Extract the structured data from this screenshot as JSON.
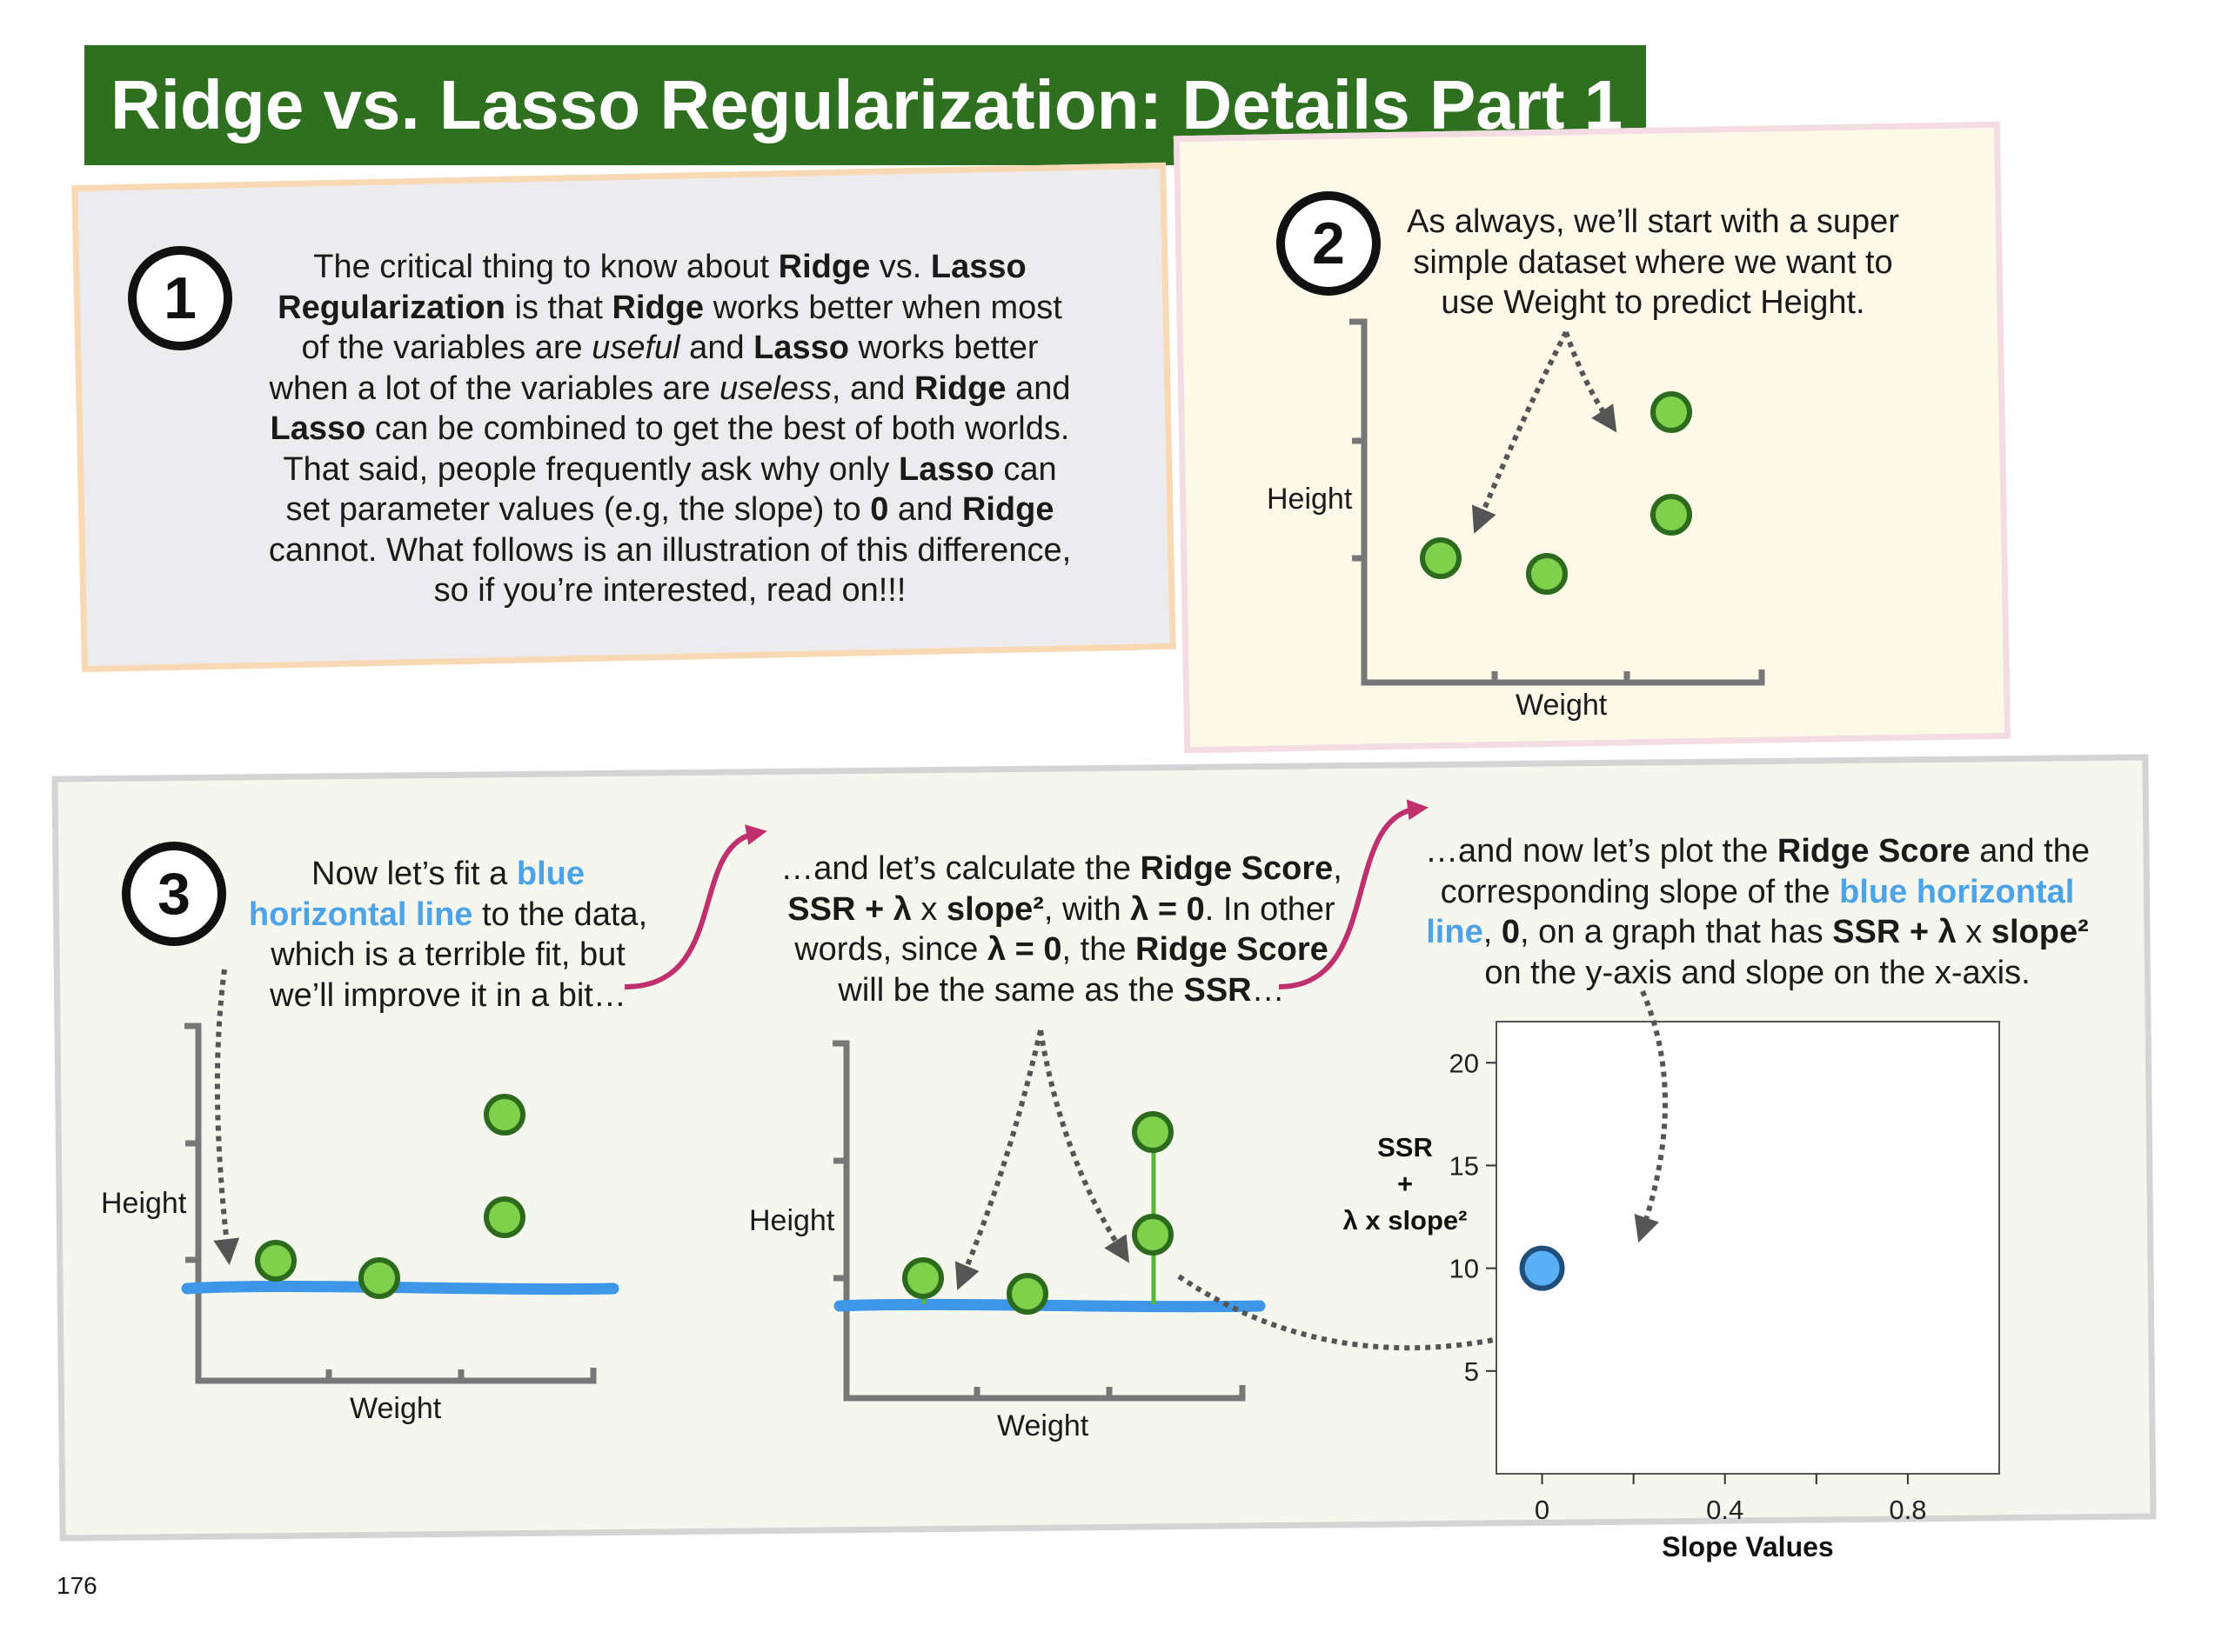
{
  "title": "Ridge vs. Lasso Regularization: Details Part 1",
  "page_number": "176",
  "step1": {
    "number": "1",
    "lines": [
      [
        "The critical thing to know about ",
        {
          "b": "Ridge"
        },
        " vs. ",
        {
          "b": "Lasso"
        }
      ],
      [
        {
          "b": "Regularization"
        },
        " is that ",
        {
          "b": "Ridge"
        },
        " works better when most"
      ],
      [
        "of the variables are ",
        {
          "i": "useful"
        },
        " and ",
        {
          "b": "Lasso"
        },
        " works better"
      ],
      [
        "when a lot of the variables are ",
        {
          "i": "useless"
        },
        ", and ",
        {
          "b": "Ridge"
        },
        " and"
      ],
      [
        {
          "b": "Lasso"
        },
        " can be combined to get the best of both worlds."
      ],
      [
        "That said, people frequently ask why only ",
        {
          "b": "Lasso"
        },
        " can"
      ],
      [
        "set parameter values (e.g, the slope) to ",
        {
          "b": "0"
        },
        " and ",
        {
          "b": "Ridge"
        }
      ],
      [
        "cannot. What follows is an illustration of this difference,"
      ],
      [
        "so if you’re interested, read on!!!"
      ]
    ]
  },
  "step2": {
    "number": "2",
    "lines": [
      [
        "As always, we’ll start with a super"
      ],
      [
        "simple dataset where we want to"
      ],
      [
        "use Weight to predict Height."
      ]
    ],
    "xlabel": "Weight",
    "ylabel": "Height"
  },
  "step3": {
    "number": "3",
    "text_a": [
      [
        "Now let’s fit a ",
        {
          "blue": "blue"
        }
      ],
      [
        {
          "blue": "horizontal line"
        },
        " to the data,"
      ],
      [
        "which is a terrible fit, but"
      ],
      [
        "we’ll improve it in a bit…"
      ]
    ],
    "text_b": [
      [
        "…and let’s calculate the ",
        {
          "b": "Ridge Score"
        },
        ","
      ],
      [
        {
          "b": "SSR + λ"
        },
        " x ",
        {
          "b": "slope²"
        },
        ", with ",
        {
          "b": "λ = 0"
        },
        ". In other"
      ],
      [
        "words, since ",
        {
          "b": "λ = 0"
        },
        ", the ",
        {
          "b": "Ridge Score"
        }
      ],
      [
        "will be the same as the ",
        {
          "b": "SSR"
        },
        "…"
      ]
    ],
    "text_c": [
      [
        "…and now let’s plot the ",
        {
          "b": "Ridge Score"
        },
        " and the"
      ],
      [
        "corresponding slope of the ",
        {
          "blue": "blue horizontal"
        }
      ],
      [
        {
          "blue": "line"
        },
        ", ",
        {
          "b": "0"
        },
        ", on a graph that has ",
        {
          "b": "SSR + λ"
        },
        " x ",
        {
          "b": "slope²"
        }
      ],
      [
        "on the y-axis and slope on the x-axis."
      ]
    ],
    "plot_a": {
      "xlabel": "Weight",
      "ylabel": "Height"
    },
    "plot_b": {
      "xlabel": "Weight",
      "ylabel": "Height"
    }
  },
  "chart_data": {
    "type": "scatter",
    "xlabel": "Slope Values",
    "ylabel_lines": [
      "SSR",
      "+",
      "λ x slope²"
    ],
    "xlim": [
      -0.1,
      1.0
    ],
    "ylim": [
      0,
      22
    ],
    "xticks": [
      0,
      0.4,
      0.8
    ],
    "yticks": [
      5,
      10,
      15,
      20
    ],
    "points": [
      {
        "x": 0,
        "y": 10
      }
    ],
    "point_color": "#5ab0f5",
    "grid": false
  },
  "colors": {
    "banner": "#2f7020",
    "point_fill": "#7fd04b",
    "point_stroke": "#2c6a1d",
    "fit_line": "#3d96e8",
    "arrow_pink": "#c0306f"
  }
}
